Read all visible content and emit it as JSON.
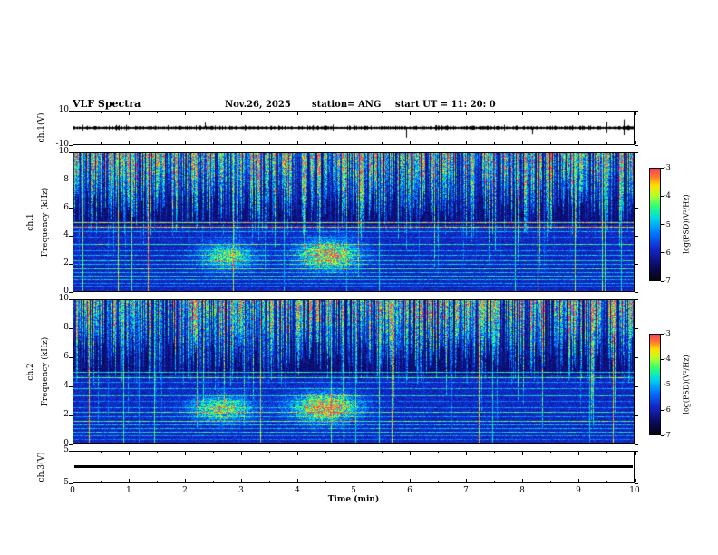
{
  "header": {
    "title": "VLF Spectra",
    "date": "Nov.26, 2025",
    "station": "station= ANG",
    "start_ut": "start UT =  11: 20: 0"
  },
  "xaxis": {
    "label": "Time (min)",
    "min": 0,
    "max": 10,
    "major_ticks": [
      0,
      1,
      2,
      3,
      4,
      5,
      6,
      7,
      8,
      9,
      10
    ],
    "minor_step": 0.5
  },
  "colorbar": {
    "label": "log(PSD)(V²/Hz)",
    "ticks": [
      "-3",
      "-4",
      "-5",
      "-6",
      "-7"
    ],
    "colormap_stops": [
      {
        "v": 0.0,
        "rgb": [
          5,
          5,
          20
        ]
      },
      {
        "v": 0.12,
        "rgb": [
          10,
          10,
          95
        ]
      },
      {
        "v": 0.28,
        "rgb": [
          20,
          40,
          205
        ]
      },
      {
        "v": 0.42,
        "rgb": [
          0,
          120,
          255
        ]
      },
      {
        "v": 0.55,
        "rgb": [
          0,
          215,
          235
        ]
      },
      {
        "v": 0.66,
        "rgb": [
          45,
          255,
          120
        ]
      },
      {
        "v": 0.76,
        "rgb": [
          180,
          255,
          40
        ]
      },
      {
        "v": 0.85,
        "rgb": [
          255,
          225,
          0
        ]
      },
      {
        "v": 0.93,
        "rgb": [
          255,
          120,
          45
        ]
      },
      {
        "v": 1.0,
        "rgb": [
          255,
          60,
          95
        ]
      }
    ]
  },
  "chart_data": [
    {
      "type": "line",
      "name": "ch1_voltage",
      "ylabel": "ch.1(V)",
      "ylim": [
        -10,
        10
      ],
      "yticks": [
        10,
        -10
      ],
      "xlim": [
        0,
        10
      ],
      "description": "broadband noise waveform around 0 V, ~±1.5 V, sparse spikes to ~-6 V",
      "seed": 20251126,
      "spikes": [
        {
          "t": 2.35,
          "amp_v": 3.2
        },
        {
          "t": 5.95,
          "amp_v": -6.0
        },
        {
          "t": 8.2,
          "amp_v": -4.0
        }
      ]
    },
    {
      "type": "heatmap",
      "name": "ch1_spectrogram",
      "ylabel_channel": "ch.1",
      "ylabel_axis": "Frequency (kHz)",
      "ylim": [
        0,
        10
      ],
      "yticks": [
        10,
        8,
        6,
        4,
        2,
        0
      ],
      "xlim": [
        0,
        10
      ],
      "value_range_log_psd": [
        -7,
        -3
      ],
      "description": "dense sferic vertical streaks above ~5 kHz, blue background below with horizontal transmitter/harmonic lines, diffuse emission blobs near 2-3 kHz at t≈2.7 and t≈4.5 min",
      "seed": 11111,
      "vertical_lines": 14,
      "horizontal_lines": [
        {
          "f": 5.0,
          "a": 0.8
        },
        {
          "f": 4.62,
          "a": 0.85
        },
        {
          "f": 4.3,
          "a": 0.5
        },
        {
          "f": 3.9,
          "a": 0.4
        },
        {
          "f": 3.35,
          "a": 0.6
        },
        {
          "f": 2.9,
          "a": 0.45
        },
        {
          "f": 2.55,
          "a": 0.5
        },
        {
          "f": 2.2,
          "a": 0.55
        },
        {
          "f": 1.9,
          "a": 0.5
        },
        {
          "f": 1.6,
          "a": 0.6
        },
        {
          "f": 1.3,
          "a": 0.5
        },
        {
          "f": 1.05,
          "a": 0.55
        },
        {
          "f": 0.8,
          "a": 0.5
        },
        {
          "f": 0.55,
          "a": 0.45
        },
        {
          "f": 0.3,
          "a": 0.4
        }
      ],
      "blobs": [
        {
          "t": 2.75,
          "f": 2.5,
          "rt": 0.45,
          "rf": 0.9,
          "a": 0.38
        },
        {
          "t": 4.55,
          "f": 2.6,
          "rt": 0.5,
          "rf": 1.0,
          "a": 0.55
        }
      ]
    },
    {
      "type": "heatmap",
      "name": "ch2_spectrogram",
      "ylabel_channel": "ch.2",
      "ylabel_axis": "Frequency (kHz)",
      "ylim": [
        0,
        10
      ],
      "yticks": [
        10,
        8,
        6,
        4,
        2,
        0
      ],
      "xlim": [
        0,
        10
      ],
      "value_range_log_psd": [
        -7,
        -3
      ],
      "description": "same structure as ch.1: sferic streaks above ~5 kHz, horizontal lines below, emission blobs near 2-2.5 kHz at t≈2.6 and t≈4.5 min",
      "seed": 22222,
      "vertical_lines": 14,
      "horizontal_lines": [
        {
          "f": 5.0,
          "a": 0.6
        },
        {
          "f": 4.6,
          "a": 0.65
        },
        {
          "f": 4.25,
          "a": 0.45
        },
        {
          "f": 3.8,
          "a": 0.5
        },
        {
          "f": 3.3,
          "a": 0.55
        },
        {
          "f": 2.9,
          "a": 0.4
        },
        {
          "f": 2.5,
          "a": 0.45
        },
        {
          "f": 2.15,
          "a": 0.6
        },
        {
          "f": 1.85,
          "a": 0.45
        },
        {
          "f": 1.55,
          "a": 0.65
        },
        {
          "f": 1.25,
          "a": 0.5
        },
        {
          "f": 1.0,
          "a": 0.5
        },
        {
          "f": 0.75,
          "a": 0.55
        },
        {
          "f": 0.5,
          "a": 0.45
        },
        {
          "f": 0.25,
          "a": 0.4
        }
      ],
      "blobs": [
        {
          "t": 2.65,
          "f": 2.4,
          "rt": 0.5,
          "rf": 0.8,
          "a": 0.45
        },
        {
          "t": 4.5,
          "f": 2.5,
          "rt": 0.55,
          "rf": 0.9,
          "a": 0.62
        }
      ]
    },
    {
      "type": "line",
      "name": "ch3_voltage",
      "ylabel": "ch.3(V)",
      "ylim": [
        -5,
        5
      ],
      "yticks": [
        5,
        -5
      ],
      "xlim": [
        0,
        10
      ],
      "description": "constant 0 V flat line (no signal)"
    }
  ]
}
